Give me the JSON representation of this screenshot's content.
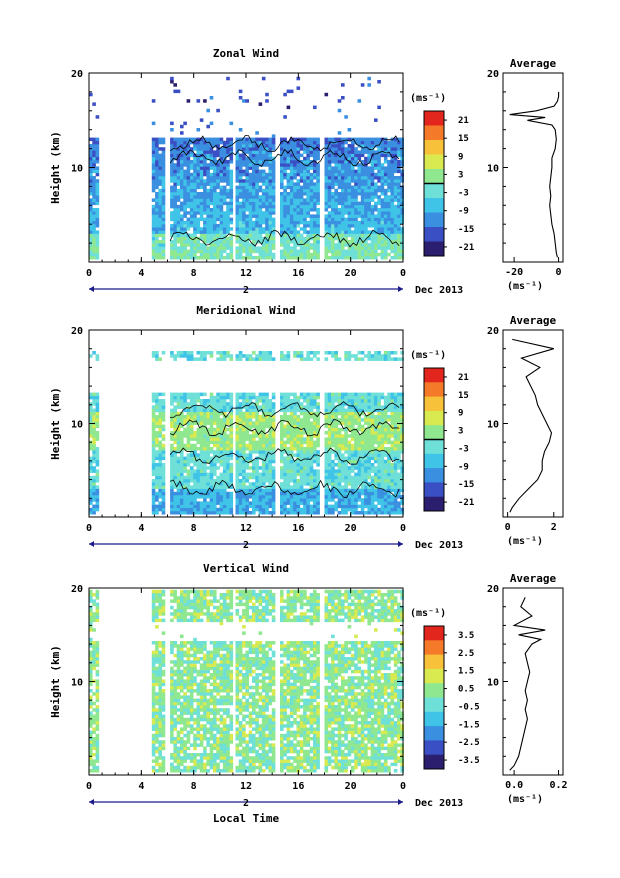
{
  "figure": {
    "month_label": "Dec 2013",
    "local_time_label": "Local Time",
    "average_title": "Average",
    "unit_label": "(ms⁻¹)",
    "ylabel": "Height (km)",
    "day_label": "2"
  },
  "colors": {
    "scale": [
      "#2b1e6e",
      "#3b4fc4",
      "#3a8fe0",
      "#3fc4e8",
      "#6ee0d8",
      "#8fe88f",
      "#d8ea50",
      "#f7c23a",
      "#f47a2a",
      "#e3261d"
    ],
    "contour": "#000000",
    "axis": "#000000"
  },
  "chart_data": [
    {
      "type": "heatmap",
      "title": "Zonal Wind",
      "xlabel": "",
      "ylabel": "Height (km)",
      "xlim": [
        0,
        24
      ],
      "ylim": [
        0,
        20
      ],
      "x_ticks": [
        "0",
        "4",
        "8",
        "12",
        "16",
        "20",
        "0"
      ],
      "y_ticks": [
        "10",
        "20"
      ],
      "colorbar": {
        "unit": "(ms⁻¹)",
        "range": [
          -24,
          24
        ],
        "ticks": [
          "21",
          "15",
          "9",
          "3",
          "-3",
          "-9",
          "-15",
          "-21"
        ],
        "contour_level": 0
      },
      "data_columns_hours": [
        [
          0,
          0.7
        ],
        [
          4.8,
          5.6
        ],
        [
          6.2,
          10.8
        ],
        [
          11.2,
          14.2
        ],
        [
          14.6,
          17.6
        ],
        [
          18.0,
          24
        ]
      ],
      "profile": {
        "title": "Average",
        "xlabel": "(ms⁻¹)",
        "xlim": [
          -25,
          2
        ],
        "x_ticks": [
          "-20",
          "0"
        ],
        "y_ticks": [
          "10",
          "20"
        ],
        "heights_km": [
          0.5,
          1,
          2,
          3,
          4,
          5,
          6,
          7,
          8,
          9,
          10,
          11,
          12,
          13,
          14,
          14.5,
          15,
          15.3,
          15.6,
          16,
          16.5,
          17,
          17.5,
          18
        ],
        "values": [
          -0.5,
          -1,
          -1.5,
          -2,
          -3,
          -3.5,
          -4,
          -3.5,
          -4,
          -3.5,
          -3,
          -3,
          -1.5,
          -1,
          -1.5,
          -3,
          -14,
          -6,
          -22,
          -10,
          -2,
          -0.5,
          0,
          0
        ]
      }
    },
    {
      "type": "heatmap",
      "title": "Meridional Wind",
      "xlabel": "",
      "ylabel": "Height (km)",
      "xlim": [
        0,
        24
      ],
      "ylim": [
        0,
        20
      ],
      "x_ticks": [
        "0",
        "4",
        "8",
        "12",
        "16",
        "20",
        "0"
      ],
      "y_ticks": [
        "10",
        "20"
      ],
      "colorbar": {
        "unit": "(ms⁻¹)",
        "range": [
          -24,
          24
        ],
        "ticks": [
          "21",
          "15",
          "9",
          "3",
          "-3",
          "-9",
          "-15",
          "-21"
        ],
        "contour_level": 0
      },
      "data_columns_hours": [
        [
          0,
          0.7
        ],
        [
          4.8,
          5.6
        ],
        [
          6.2,
          10.8
        ],
        [
          11.2,
          14.2
        ],
        [
          14.6,
          17.6
        ],
        [
          18.0,
          24
        ]
      ],
      "profile": {
        "title": "Average",
        "xlabel": "(ms⁻¹)",
        "xlim": [
          -0.2,
          2.4
        ],
        "x_ticks": [
          "0",
          "2"
        ],
        "y_ticks": [
          "10",
          "20"
        ],
        "heights_km": [
          0.5,
          1,
          2,
          3,
          4,
          5,
          6,
          7,
          8,
          9,
          10,
          11,
          12,
          13,
          14,
          15,
          16,
          17,
          18,
          19
        ],
        "values": [
          0.1,
          0.2,
          0.5,
          0.9,
          1.3,
          1.5,
          1.5,
          1.6,
          1.8,
          1.9,
          1.7,
          1.5,
          1.3,
          1.2,
          1.0,
          0.8,
          1.4,
          0.6,
          2.0,
          0.2
        ]
      }
    },
    {
      "type": "heatmap",
      "title": "Vertical Wind",
      "xlabel": "Local Time",
      "ylabel": "Height (km)",
      "xlim": [
        0,
        24
      ],
      "ylim": [
        0,
        20
      ],
      "x_ticks": [
        "0",
        "4",
        "8",
        "12",
        "16",
        "20",
        "0"
      ],
      "y_ticks": [
        "10",
        "20"
      ],
      "colorbar": {
        "unit": "(ms⁻¹)",
        "range": [
          -4,
          4
        ],
        "ticks": [
          "3.5",
          "2.5",
          "1.5",
          "0.5",
          "-0.5",
          "-1.5",
          "-2.5",
          "-3.5"
        ]
      },
      "data_columns_hours": [
        [
          0,
          0.7
        ],
        [
          4.8,
          5.6
        ],
        [
          6.2,
          10.8
        ],
        [
          11.2,
          14.2
        ],
        [
          14.6,
          17.6
        ],
        [
          18.0,
          24
        ]
      ],
      "profile": {
        "title": "Average",
        "xlabel": "(ms⁻¹)",
        "xlim": [
          -0.05,
          0.22
        ],
        "x_ticks": [
          "0.0",
          "0.2"
        ],
        "y_ticks": [
          "10",
          "20"
        ],
        "heights_km": [
          0.5,
          1,
          2,
          3,
          4,
          5,
          6,
          7,
          8,
          9,
          10,
          11,
          12,
          13,
          14,
          14.5,
          15,
          15.5,
          16,
          17,
          18,
          19
        ],
        "values": [
          -0.02,
          0.0,
          0.02,
          0.03,
          0.04,
          0.05,
          0.06,
          0.05,
          0.06,
          0.05,
          0.06,
          0.07,
          0.06,
          0.05,
          0.08,
          0.12,
          0.02,
          0.14,
          0.0,
          0.08,
          0.03,
          0.05
        ]
      }
    }
  ]
}
